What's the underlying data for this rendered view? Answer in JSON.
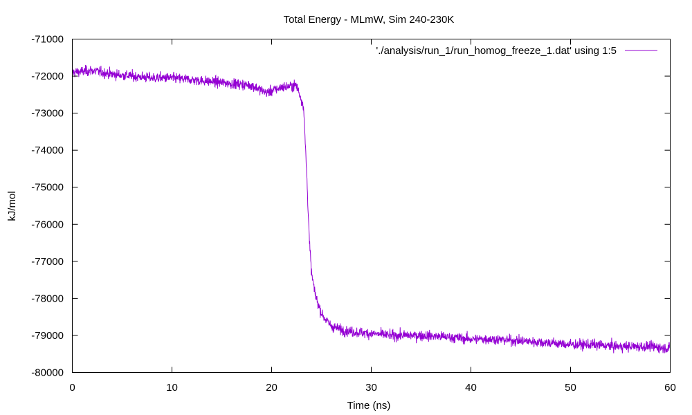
{
  "chart_data": {
    "type": "line",
    "title": "Total Energy - MLmW, Sim 240-230K",
    "xlabel": "Time (ns)",
    "ylabel": "kJ/mol",
    "xlim": [
      0,
      60
    ],
    "ylim": [
      -80000,
      -71000
    ],
    "xticks": [
      0,
      10,
      20,
      30,
      40,
      50,
      60
    ],
    "yticks": [
      -71000,
      -72000,
      -73000,
      -74000,
      -75000,
      -76000,
      -77000,
      -78000,
      -79000,
      -80000
    ],
    "grid": false,
    "legend_position": "top-right",
    "series": [
      {
        "name": "'./analysis/run_1/run_homog_freeze_1.dat' using 1:5",
        "color": "#9400d3",
        "noise_amplitude": 250,
        "x": [
          0,
          2,
          4,
          6,
          8,
          10,
          12,
          14,
          16,
          18,
          19.5,
          21,
          22.5,
          23.2,
          23.5,
          23.8,
          24.0,
          24.3,
          24.6,
          25.0,
          25.5,
          26.0,
          27.0,
          28.0,
          30.0,
          32.0,
          35.0,
          38.0,
          40.0,
          42.0,
          45.0,
          48.0,
          50.0,
          52.0,
          55.0,
          58.0,
          60.0
        ],
        "y": [
          -71900,
          -71850,
          -71950,
          -72000,
          -72050,
          -72050,
          -72100,
          -72150,
          -72200,
          -72250,
          -72450,
          -72300,
          -72250,
          -72800,
          -74500,
          -76500,
          -77300,
          -77800,
          -78100,
          -78400,
          -78600,
          -78750,
          -78850,
          -78900,
          -78950,
          -79000,
          -79000,
          -79050,
          -79100,
          -79100,
          -79150,
          -79200,
          -79250,
          -79250,
          -79300,
          -79300,
          -79350
        ]
      }
    ]
  }
}
